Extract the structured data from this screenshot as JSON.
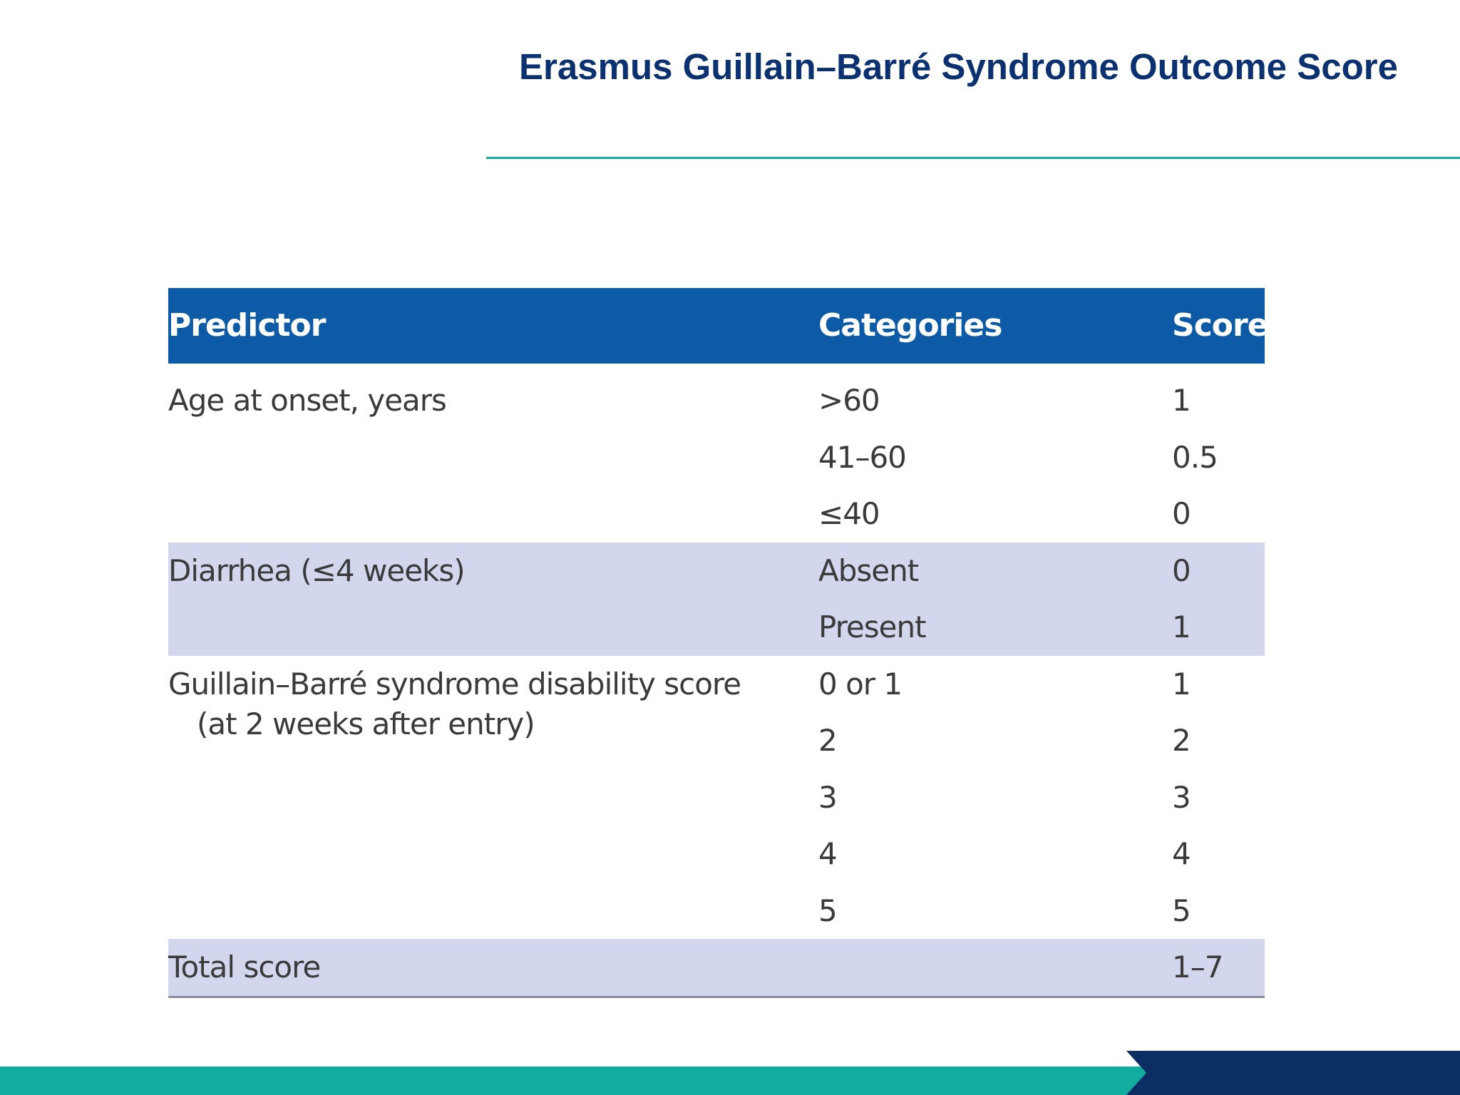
{
  "title": "Erasmus Guillain–Barré Syndrome Outcome Score",
  "table": {
    "headers": {
      "predictor": "Predictor",
      "categories": "Categories",
      "score": "Score"
    },
    "groups": [
      {
        "predictor": "Age at onset, years",
        "predictor_sub": "",
        "shaded": false,
        "rows": [
          {
            "category": ">60",
            "score": "1"
          },
          {
            "category": "41–60",
            "score": "0.5"
          },
          {
            "category": "≤40",
            "score": "0"
          }
        ]
      },
      {
        "predictor": "Diarrhea (≤4 weeks)",
        "predictor_sub": "",
        "shaded": true,
        "rows": [
          {
            "category": "Absent",
            "score": "0"
          },
          {
            "category": "Present",
            "score": "1"
          }
        ]
      },
      {
        "predictor": "Guillain–Barré syndrome disability score",
        "predictor_sub": "(at 2 weeks after entry)",
        "shaded": false,
        "rows": [
          {
            "category": "0 or 1",
            "score": "1"
          },
          {
            "category": "2",
            "score": "2"
          },
          {
            "category": "3",
            "score": "3"
          },
          {
            "category": "4",
            "score": "4"
          },
          {
            "category": "5",
            "score": "5"
          }
        ]
      },
      {
        "predictor": "Total score",
        "predictor_sub": "",
        "shaded": true,
        "rows": [
          {
            "category": "",
            "score": "1–7"
          }
        ]
      }
    ]
  },
  "colors": {
    "title": "#0b3170",
    "header_bg": "#0d5aa7",
    "shaded_row": "#d3d7ee",
    "accent_teal": "#12aca0",
    "accent_navy": "#0b2e63"
  }
}
